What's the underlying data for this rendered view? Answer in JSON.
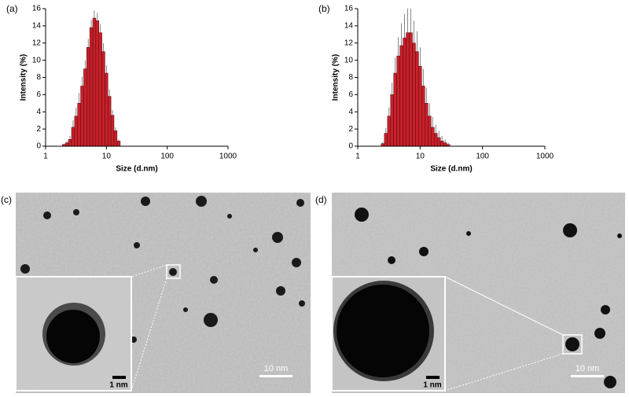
{
  "chart_data": [
    {
      "type": "bar",
      "panel": "(a)",
      "xlabel": "Size (d.nm)",
      "ylabel": "Intensity (%)",
      "xscale": "log",
      "xlim": [
        1,
        1000
      ],
      "xticks": [
        1,
        10,
        100,
        1000
      ],
      "ylim": [
        0,
        16
      ],
      "yticks": [
        0,
        2,
        4,
        6,
        8,
        10,
        12,
        14,
        16
      ],
      "color": "#c8202a",
      "x": [
        2.0,
        2.24,
        2.52,
        2.83,
        3.17,
        3.56,
        3.99,
        4.48,
        5.02,
        5.64,
        6.32,
        7.1,
        7.96,
        8.93,
        10.0,
        11.2,
        12.6,
        14.1,
        15.9
      ],
      "values": [
        0.2,
        0.4,
        0.8,
        2.2,
        3.5,
        5.0,
        7.0,
        9.0,
        11.5,
        13.8,
        14.9,
        14.6,
        13.2,
        11.0,
        8.5,
        5.8,
        3.6,
        1.8,
        0.6
      ],
      "errors": [
        0.1,
        0.2,
        0.4,
        0.8,
        1.0,
        1.2,
        1.1,
        1.0,
        1.0,
        0.9,
        0.9,
        0.9,
        1.0,
        1.0,
        0.9,
        0.8,
        0.6,
        0.4,
        0.2
      ]
    },
    {
      "type": "bar",
      "panel": "(b)",
      "xlabel": "Size (d.nm)",
      "ylabel": "Intensity (%)",
      "xscale": "log",
      "xlim": [
        1,
        1000
      ],
      "xticks": [
        1,
        10,
        100,
        1000
      ],
      "ylim": [
        0,
        16
      ],
      "yticks": [
        0,
        2,
        4,
        6,
        8,
        10,
        12,
        14,
        16
      ],
      "color": "#c8202a",
      "x": [
        2.52,
        2.83,
        3.17,
        3.56,
        3.99,
        4.48,
        5.02,
        5.64,
        6.32,
        7.1,
        7.96,
        8.93,
        10.0,
        11.2,
        12.6,
        14.1,
        15.9,
        17.8,
        20.0,
        22.4,
        25.2,
        28.3
      ],
      "values": [
        0.3,
        1.5,
        3.5,
        6.0,
        8.5,
        10.5,
        11.7,
        12.6,
        13.2,
        13.2,
        12.0,
        11.0,
        9.3,
        7.0,
        5.0,
        3.5,
        2.2,
        1.5,
        1.0,
        0.6,
        0.4,
        0.2
      ],
      "errors": [
        0.2,
        0.6,
        1.0,
        1.4,
        1.8,
        2.2,
        2.6,
        2.8,
        2.8,
        2.8,
        2.6,
        2.4,
        2.2,
        2.0,
        1.8,
        1.5,
        1.2,
        1.0,
        0.8,
        0.6,
        0.4,
        0.2
      ]
    }
  ],
  "images": [
    {
      "label": "(c)",
      "scale_bar": "10 nm",
      "inset_scale_bar": "1 nm"
    },
    {
      "label": "(d)",
      "scale_bar": "10 nm",
      "inset_scale_bar": "1 nm"
    }
  ]
}
